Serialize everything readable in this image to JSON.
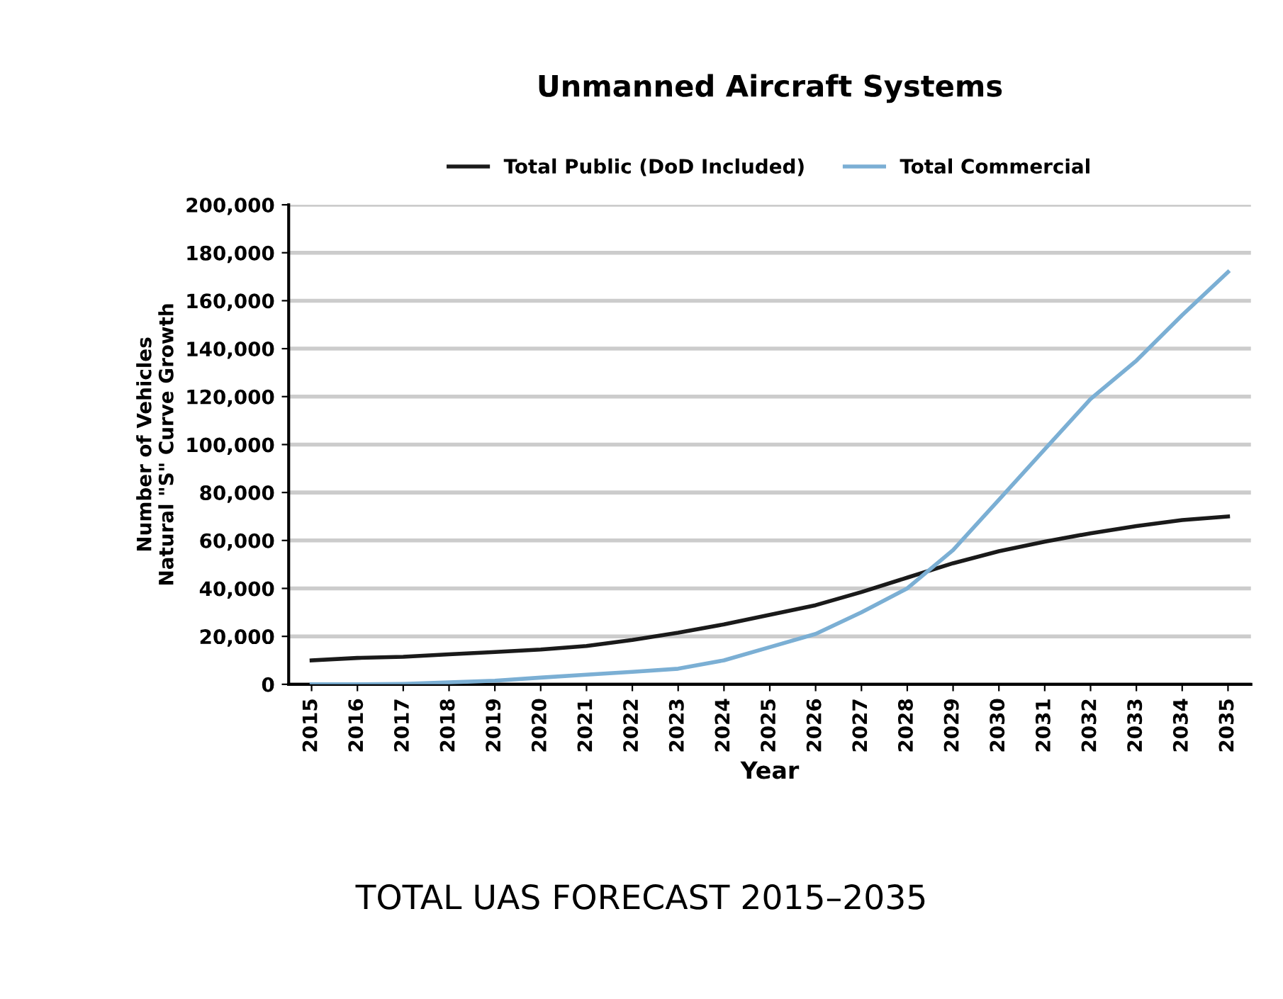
{
  "chart_data": {
    "type": "line",
    "title": "Unmanned Aircraft Systems",
    "xlabel": "Year",
    "ylabel": "Number of Vehicles\nNatural \"S\" Curve Growth",
    "categories": [
      "2015",
      "2016",
      "2017",
      "2018",
      "2019",
      "2020",
      "2021",
      "2022",
      "2023",
      "2024",
      "2025",
      "2026",
      "2027",
      "2028",
      "2029",
      "2030",
      "2031",
      "2032",
      "2033",
      "2034",
      "2035"
    ],
    "series": [
      {
        "name": "Total Public (DoD Included)",
        "color": "#1a1a1a",
        "values": [
          10000,
          11000,
          11500,
          12500,
          13500,
          14500,
          16000,
          18500,
          21500,
          25000,
          29000,
          33000,
          38500,
          44500,
          50500,
          55500,
          59500,
          63000,
          66000,
          68500,
          70000
        ]
      },
      {
        "name": "Total Commercial",
        "color": "#7bafd4",
        "values": [
          0,
          0,
          200,
          800,
          1500,
          2800,
          4000,
          5200,
          6500,
          10000,
          15500,
          21000,
          30000,
          40000,
          56000,
          77000,
          98000,
          119000,
          135000,
          154000,
          172000
        ]
      }
    ],
    "ylim": [
      0,
      200000
    ],
    "yticks": [
      {
        "value": 0,
        "label": "0"
      },
      {
        "value": 20000,
        "label": "20,000"
      },
      {
        "value": 40000,
        "label": "40,000"
      },
      {
        "value": 60000,
        "label": "60,000"
      },
      {
        "value": 80000,
        "label": "80,000"
      },
      {
        "value": 100000,
        "label": "100,000"
      },
      {
        "value": 120000,
        "label": "120,000"
      },
      {
        "value": 140000,
        "label": "140,000"
      },
      {
        "value": 160000,
        "label": "160,000"
      },
      {
        "value": 180000,
        "label": "180,000"
      },
      {
        "value": 200000,
        "label": "200,000"
      }
    ],
    "grid": "y",
    "legend": "top",
    "marker": "none",
    "line_style": "solid",
    "annotations": [
      "TOTAL UAS FORECAST 2015–2035"
    ]
  }
}
